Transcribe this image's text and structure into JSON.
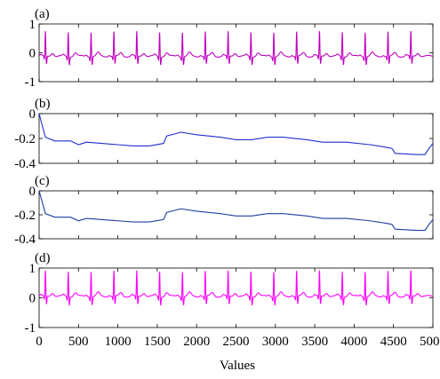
{
  "chart_data": [
    {
      "type": "line",
      "panel_label": "(a)",
      "title": "",
      "ylabel": "",
      "xlabel": "",
      "xlim": [
        0,
        5000
      ],
      "ylim": [
        -1,
        1
      ],
      "yticks": [
        1,
        0,
        -1
      ],
      "ytick_labels": [
        "1",
        "0",
        "-1"
      ],
      "signal": "ecg",
      "baseline": -0.12,
      "r_peak": 0.85,
      "beats_x": [
        80,
        370,
        660,
        950,
        1240,
        1530,
        1820,
        2110,
        2400,
        2690,
        2980,
        3270,
        3560,
        3850,
        4140,
        4430,
        4720
      ],
      "series": [
        {
          "color": "#c000c0"
        }
      ]
    },
    {
      "type": "line",
      "panel_label": "(b)",
      "title": "",
      "ylabel": "",
      "xlabel": "",
      "xlim": [
        0,
        5000
      ],
      "ylim": [
        -0.4,
        0
      ],
      "yticks": [
        0,
        -0.2,
        -0.4
      ],
      "ytick_labels": [
        "0",
        "-0.2",
        "-0.4"
      ],
      "signal": "trend",
      "series": [
        {
          "color": "#1f2fcf",
          "x": [
            0,
            80,
            200,
            400,
            500,
            600,
            800,
            1000,
            1200,
            1400,
            1580,
            1620,
            1800,
            2000,
            2300,
            2500,
            2700,
            2900,
            3100,
            3400,
            3600,
            3900,
            4200,
            4400,
            4480,
            4520,
            4800,
            4900,
            4950,
            5000
          ],
          "y": [
            0,
            -0.19,
            -0.22,
            -0.22,
            -0.25,
            -0.23,
            -0.24,
            -0.25,
            -0.26,
            -0.26,
            -0.24,
            -0.18,
            -0.15,
            -0.17,
            -0.19,
            -0.21,
            -0.21,
            -0.19,
            -0.19,
            -0.21,
            -0.23,
            -0.23,
            -0.25,
            -0.27,
            -0.28,
            -0.32,
            -0.33,
            -0.33,
            -0.28,
            -0.24
          ]
        }
      ]
    },
    {
      "type": "line",
      "panel_label": "(c)",
      "title": "",
      "ylabel": "",
      "xlabel": "",
      "xlim": [
        0,
        5000
      ],
      "ylim": [
        -0.4,
        0
      ],
      "yticks": [
        0,
        -0.2,
        -0.4
      ],
      "ytick_labels": [
        "0",
        "-0.2",
        "-0.4"
      ],
      "signal": "trend",
      "series": [
        {
          "color": "#1f3fa0",
          "x": [
            0,
            80,
            200,
            400,
            500,
            600,
            800,
            1000,
            1200,
            1400,
            1580,
            1620,
            1800,
            2000,
            2300,
            2500,
            2700,
            2900,
            3100,
            3400,
            3600,
            3900,
            4200,
            4400,
            4480,
            4520,
            4800,
            4900,
            4950,
            5000
          ],
          "y": [
            0,
            -0.19,
            -0.22,
            -0.22,
            -0.25,
            -0.23,
            -0.24,
            -0.25,
            -0.26,
            -0.26,
            -0.24,
            -0.18,
            -0.15,
            -0.17,
            -0.19,
            -0.21,
            -0.21,
            -0.19,
            -0.19,
            -0.21,
            -0.23,
            -0.23,
            -0.25,
            -0.27,
            -0.28,
            -0.32,
            -0.33,
            -0.33,
            -0.28,
            -0.24
          ]
        }
      ]
    },
    {
      "type": "line",
      "panel_label": "(d)",
      "title": "",
      "ylabel": "",
      "xlabel": "Values",
      "xlim": [
        0,
        5000
      ],
      "xticks": [
        0,
        500,
        1000,
        1500,
        2000,
        2500,
        3000,
        3500,
        4000,
        4500,
        5000
      ],
      "xtick_labels": [
        "0",
        "500",
        "1000",
        "1500",
        "2000",
        "2500",
        "3000",
        "3500",
        "4000",
        "4500",
        "5000"
      ],
      "ylim": [
        -1,
        1
      ],
      "yticks": [
        1,
        0,
        -1
      ],
      "ytick_labels": [
        "1",
        "0",
        "-1"
      ],
      "signal": "ecg",
      "baseline": 0.05,
      "r_peak": 0.85,
      "beats_x": [
        80,
        370,
        660,
        950,
        1240,
        1530,
        1820,
        2110,
        2400,
        2690,
        2980,
        3270,
        3560,
        3850,
        4140,
        4430,
        4720
      ],
      "series": [
        {
          "color": "#ff00ff"
        }
      ]
    }
  ]
}
